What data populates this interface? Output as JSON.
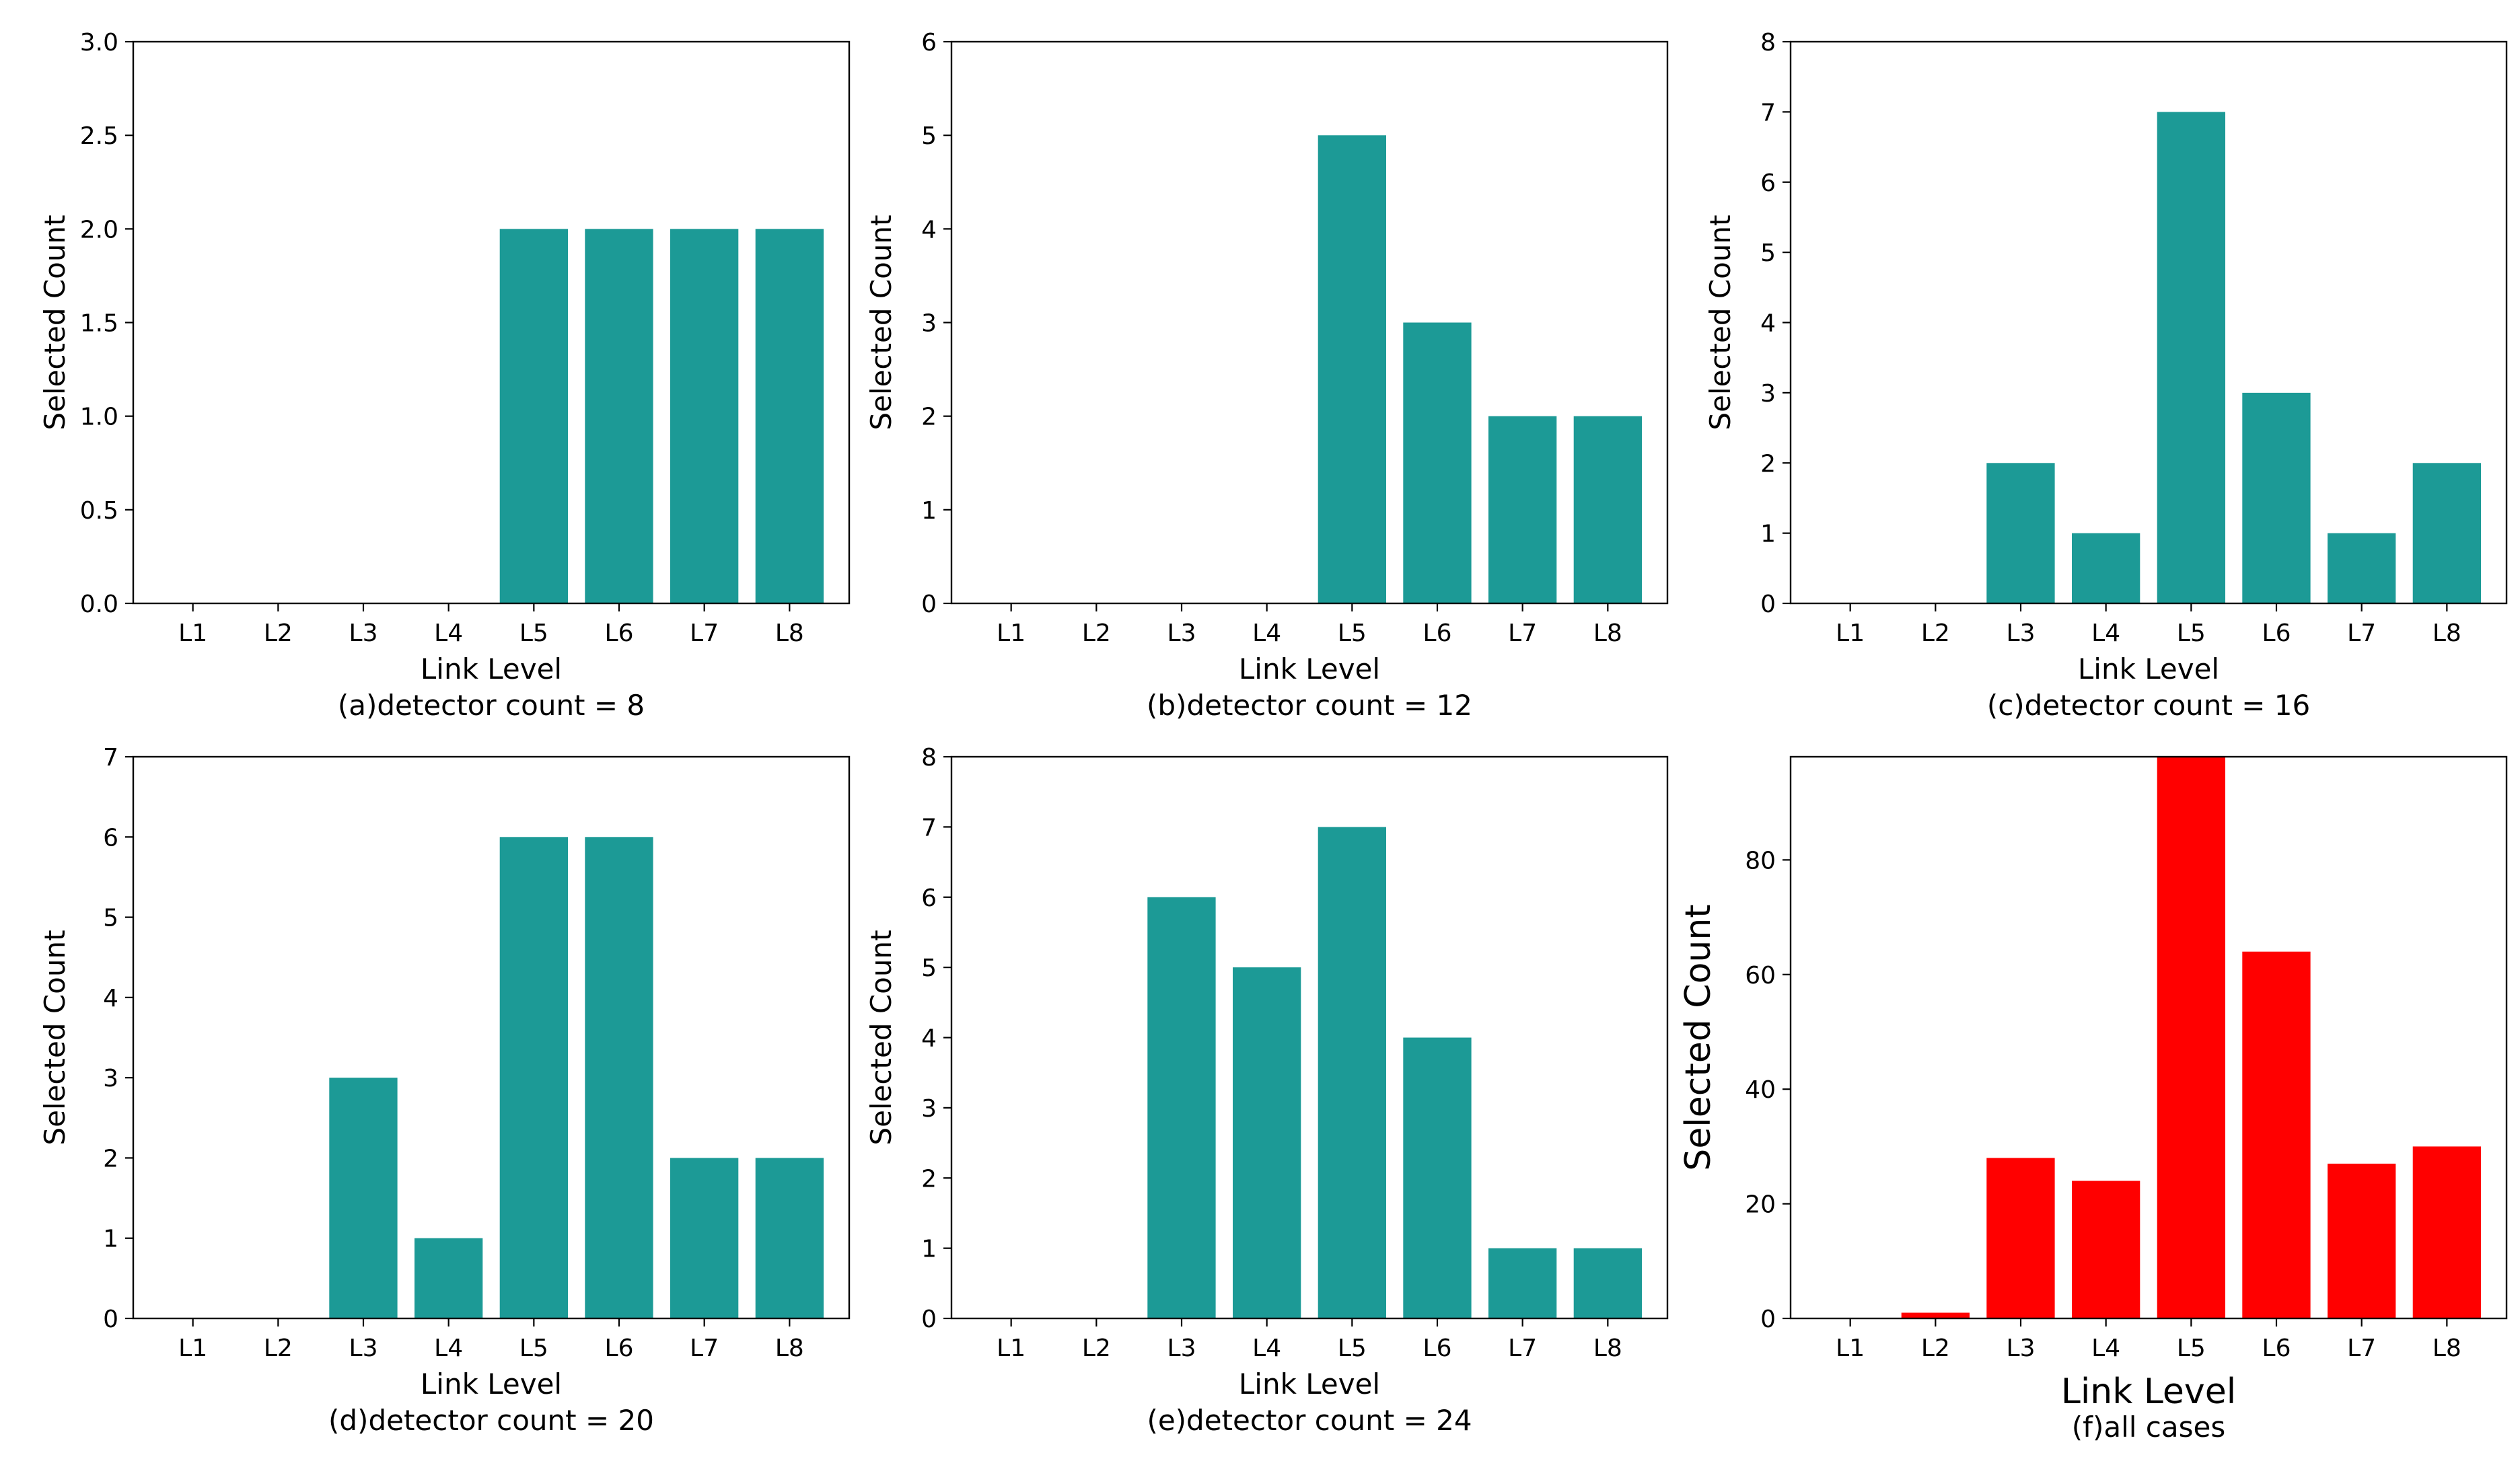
{
  "chart_data": [
    {
      "type": "bar",
      "caption": "(a)detector count = 8",
      "xlabel": "Link Level",
      "ylabel": "Selected Count",
      "categories": [
        "L1",
        "L2",
        "L3",
        "L4",
        "L5",
        "L6",
        "L7",
        "L8"
      ],
      "values": [
        0,
        0,
        0,
        0,
        2,
        2,
        2,
        2
      ],
      "ylim": [
        0,
        3.0
      ],
      "yticks": [
        "0.0",
        "0.5",
        "1.0",
        "1.5",
        "2.0",
        "2.5",
        "3.0"
      ],
      "ytick_values": [
        0,
        0.5,
        1.0,
        1.5,
        2.0,
        2.5,
        3.0
      ],
      "color": "#1c9a96",
      "grid": false
    },
    {
      "type": "bar",
      "caption": "(b)detector count = 12",
      "xlabel": "Link Level",
      "ylabel": "Selected Count",
      "categories": [
        "L1",
        "L2",
        "L3",
        "L4",
        "L5",
        "L6",
        "L7",
        "L8"
      ],
      "values": [
        0,
        0,
        0,
        0,
        5,
        3,
        2,
        2
      ],
      "ylim": [
        0,
        6
      ],
      "yticks": [
        "0",
        "1",
        "2",
        "3",
        "4",
        "5",
        "6"
      ],
      "ytick_values": [
        0,
        1,
        2,
        3,
        4,
        5,
        6
      ],
      "color": "#1c9a96",
      "grid": false
    },
    {
      "type": "bar",
      "caption": "(c)detector count = 16",
      "xlabel": "Link Level",
      "ylabel": "Selected Count",
      "categories": [
        "L1",
        "L2",
        "L3",
        "L4",
        "L5",
        "L6",
        "L7",
        "L8"
      ],
      "values": [
        0,
        0,
        2,
        1,
        7,
        3,
        1,
        2
      ],
      "ylim": [
        0,
        8
      ],
      "yticks": [
        "0",
        "1",
        "2",
        "3",
        "4",
        "5",
        "6",
        "7",
        "8"
      ],
      "ytick_values": [
        0,
        1,
        2,
        3,
        4,
        5,
        6,
        7,
        8
      ],
      "color": "#1c9a96",
      "grid": false
    },
    {
      "type": "bar",
      "caption": "(d)detector count = 20",
      "xlabel": "Link Level",
      "ylabel": "Selected Count",
      "categories": [
        "L1",
        "L2",
        "L3",
        "L4",
        "L5",
        "L6",
        "L7",
        "L8"
      ],
      "values": [
        0,
        0,
        3,
        1,
        6,
        6,
        2,
        2
      ],
      "ylim": [
        0,
        7
      ],
      "yticks": [
        "0",
        "1",
        "2",
        "3",
        "4",
        "5",
        "6",
        "7"
      ],
      "ytick_values": [
        0,
        1,
        2,
        3,
        4,
        5,
        6,
        7
      ],
      "color": "#1c9a96",
      "grid": false
    },
    {
      "type": "bar",
      "caption": "(e)detector count = 24",
      "xlabel": "Link Level",
      "ylabel": "Selected Count",
      "categories": [
        "L1",
        "L2",
        "L3",
        "L4",
        "L5",
        "L6",
        "L7",
        "L8"
      ],
      "values": [
        0,
        0,
        6,
        5,
        7,
        4,
        1,
        1
      ],
      "ylim": [
        0,
        8
      ],
      "yticks": [
        "0",
        "1",
        "2",
        "3",
        "4",
        "5",
        "6",
        "7",
        "8"
      ],
      "ytick_values": [
        0,
        1,
        2,
        3,
        4,
        5,
        6,
        7,
        8
      ],
      "color": "#1c9a96",
      "grid": false
    },
    {
      "type": "bar",
      "caption": "(f)all cases",
      "xlabel": "Link Level",
      "ylabel": "Selected Count",
      "categories": [
        "L1",
        "L2",
        "L3",
        "L4",
        "L5",
        "L6",
        "L7",
        "L8"
      ],
      "values": [
        0,
        1,
        28,
        24,
        98,
        64,
        27,
        30
      ],
      "ylim": [
        0,
        98
      ],
      "yticks": [
        "0",
        "20",
        "40",
        "60",
        "80"
      ],
      "ytick_values": [
        0,
        20,
        40,
        60,
        80
      ],
      "color": "#ff0000",
      "grid": false
    }
  ]
}
